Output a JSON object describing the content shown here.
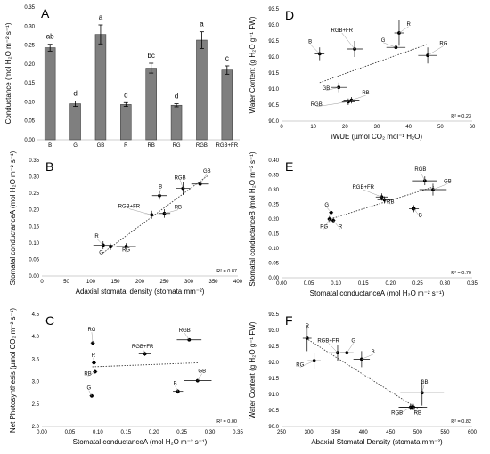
{
  "chart_data": [
    {
      "panel": "A",
      "type": "bar",
      "ylabel": "Conductance (mol H₂O m⁻² s⁻¹)",
      "ylim": [
        0,
        0.35
      ],
      "yticks": [
        0,
        0.05,
        0.1,
        0.15,
        0.2,
        0.25,
        0.3,
        0.35
      ],
      "categories": [
        "B",
        "G",
        "GB",
        "R",
        "RB",
        "RG",
        "RGB",
        "RGB+FR"
      ],
      "values": [
        0.243,
        0.095,
        0.278,
        0.093,
        0.189,
        0.091,
        0.263,
        0.184
      ],
      "errors": [
        0.009,
        0.007,
        0.025,
        0.005,
        0.013,
        0.004,
        0.022,
        0.011
      ],
      "letters": [
        "ab",
        "d",
        "a",
        "d",
        "bc",
        "d",
        "a",
        "c"
      ]
    },
    {
      "panel": "B",
      "type": "scatter",
      "xlabel": "Adaxial stomatal density (stomata mm⁻²)",
      "ylabel": "Stomatal conductanceA (mol H₂O m⁻² s⁻¹)",
      "xlim": [
        0,
        400
      ],
      "ylim": [
        0,
        0.35
      ],
      "xticks": [
        0,
        50,
        100,
        150,
        200,
        250,
        300,
        350,
        400
      ],
      "yticks": [
        0,
        0.05,
        0.1,
        0.15,
        0.2,
        0.25,
        0.3,
        0.35
      ],
      "r2": "R² = 0.87",
      "trend": [
        [
          125,
          0.07
        ],
        [
          340,
          0.305
        ]
      ],
      "points": [
        {
          "label": "R",
          "x": 125,
          "y": 0.093,
          "xerr": 20,
          "yerr": 0.012,
          "lx": 112,
          "ly": 0.113
        },
        {
          "label": "G",
          "x": 140,
          "y": 0.088,
          "xerr": 14,
          "yerr": 0.01,
          "lx": 121,
          "ly": 0.063
        },
        {
          "label": "RG",
          "x": 172,
          "y": 0.089,
          "xerr": 20,
          "yerr": 0.01,
          "lx": 172,
          "ly": 0.072
        },
        {
          "label": "B",
          "x": 240,
          "y": 0.243,
          "xerr": 15,
          "yerr": 0.012,
          "lx": 242,
          "ly": 0.262
        },
        {
          "label": "RGB",
          "x": 288,
          "y": 0.265,
          "xerr": 15,
          "yerr": 0.02,
          "lx": 282,
          "ly": 0.29
        },
        {
          "label": "GB",
          "x": 323,
          "y": 0.278,
          "xerr": 18,
          "yerr": 0.02,
          "lx": 337,
          "ly": 0.31
        },
        {
          "label": "RGB+FR",
          "x": 224,
          "y": 0.185,
          "xerr": 14,
          "yerr": 0.012,
          "lx": 178,
          "ly": 0.203
        },
        {
          "label": "RB",
          "x": 250,
          "y": 0.189,
          "xerr": 12,
          "yerr": 0.013,
          "lx": 278,
          "ly": 0.2
        }
      ]
    },
    {
      "panel": "C",
      "type": "scatter",
      "xlabel": "Stomatal conductanceA (mol H₂O m⁻² s⁻¹)",
      "ylabel": "Net Photosynthesis (µmol CO₂ m⁻² s⁻¹)",
      "xlim": [
        0,
        0.35
      ],
      "ylim": [
        2,
        4.5
      ],
      "xticks": [
        0,
        0.05,
        0.1,
        0.15,
        0.2,
        0.25,
        0.3,
        0.35
      ],
      "yticks": [
        2,
        2.5,
        3,
        3.5,
        4,
        4.5
      ],
      "r2": "R² = 0.00",
      "trend": [
        [
          0.09,
          3.33
        ],
        [
          0.28,
          3.42
        ]
      ],
      "points": [
        {
          "label": "RG",
          "x": 0.091,
          "y": 3.86,
          "xerr": 0.004,
          "yerr": 0.04,
          "lx": 0.089,
          "ly": 4.1
        },
        {
          "label": "R",
          "x": 0.093,
          "y": 3.42,
          "xerr": 0.004,
          "yerr": 0.04,
          "lx": 0.092,
          "ly": 3.53
        },
        {
          "label": "RB",
          "x": 0.095,
          "y": 3.22,
          "xerr": 0.004,
          "yerr": 0.04,
          "lx": 0.082,
          "ly": 3.12
        },
        {
          "label": "G",
          "x": 0.089,
          "y": 2.68,
          "xerr": 0.004,
          "yerr": 0.04,
          "lx": 0.084,
          "ly": 2.8
        },
        {
          "label": "RGB+FR",
          "x": 0.184,
          "y": 3.62,
          "xerr": 0.011,
          "yerr": 0.05,
          "lx": 0.18,
          "ly": 3.73
        },
        {
          "label": "RGB",
          "x": 0.263,
          "y": 3.93,
          "xerr": 0.022,
          "yerr": 0.03,
          "lx": 0.255,
          "ly": 4.08
        },
        {
          "label": "B",
          "x": 0.243,
          "y": 2.78,
          "xerr": 0.009,
          "yerr": 0.05,
          "lx": 0.238,
          "ly": 2.9
        },
        {
          "label": "GB",
          "x": 0.278,
          "y": 3.02,
          "xerr": 0.025,
          "yerr": 0.04,
          "lx": 0.286,
          "ly": 3.18
        }
      ]
    },
    {
      "panel": "D",
      "type": "scatter",
      "xlabel": "iWUE (µmol CO₂ mol⁻¹ H₂O)",
      "ylabel": "Water Content (g H₂O g⁻¹ FW)",
      "xlim": [
        0,
        60
      ],
      "ylim": [
        90,
        93.5
      ],
      "xticks": [
        0,
        10,
        20,
        30,
        40,
        50,
        60
      ],
      "yticks": [
        90,
        90.5,
        91,
        91.5,
        92,
        92.5,
        93,
        93.5
      ],
      "r2": "R² = 0.23",
      "trend": [
        [
          12,
          91.2
        ],
        [
          46,
          92.4
        ]
      ],
      "points": [
        {
          "label": "B",
          "x": 12,
          "y": 92.1,
          "xerr": 1.5,
          "yerr": 0.2,
          "lx": 9,
          "ly": 92.4
        },
        {
          "label": "RGB+FR",
          "x": 23,
          "y": 92.25,
          "xerr": 2.5,
          "yerr": 0.25,
          "lx": 19,
          "ly": 92.75
        },
        {
          "label": "R",
          "x": 37,
          "y": 92.75,
          "xerr": 1.5,
          "yerr": 0.4,
          "lx": 40,
          "ly": 92.95
        },
        {
          "label": "G",
          "x": 36,
          "y": 92.3,
          "xerr": 3,
          "yerr": 0.15,
          "lx": 32,
          "ly": 92.45
        },
        {
          "label": "RG",
          "x": 46,
          "y": 92.05,
          "xerr": 3,
          "yerr": 0.25,
          "lx": 51,
          "ly": 92.35
        },
        {
          "label": "GB",
          "x": 18,
          "y": 91.05,
          "xerr": 2.5,
          "yerr": 0.15,
          "lx": 14,
          "ly": 90.95
        },
        {
          "label": "RB",
          "x": 22,
          "y": 90.65,
          "xerr": 2.5,
          "yerr": 0.1,
          "lx": 26.5,
          "ly": 90.8
        },
        {
          "label": "RGB",
          "x": 21,
          "y": 90.6,
          "xerr": 2,
          "yerr": 0.1,
          "lx": 11,
          "ly": 90.45
        }
      ]
    },
    {
      "panel": "E",
      "type": "scatter",
      "xlabel": "Stomatal conductanceA (mol H₂O m⁻² s⁻¹)",
      "ylabel": "Stomatal conductanceB (mol H₂O m⁻² s⁻¹)",
      "xlim": [
        0,
        0.35
      ],
      "ylim": [
        0,
        0.4
      ],
      "xticks": [
        0,
        0.05,
        0.1,
        0.15,
        0.2,
        0.25,
        0.3,
        0.35
      ],
      "yticks": [
        0,
        0.05,
        0.1,
        0.15,
        0.2,
        0.25,
        0.3,
        0.35,
        0.4
      ],
      "r2": "R² = 0.70",
      "trend": [
        [
          0.09,
          0.2
        ],
        [
          0.28,
          0.31
        ]
      ],
      "points": [
        {
          "label": "G",
          "x": 0.091,
          "y": 0.222,
          "xerr": 0.004,
          "yerr": 0.01,
          "lx": 0.083,
          "ly": 0.24
        },
        {
          "label": "RG",
          "x": 0.088,
          "y": 0.2,
          "xerr": 0.004,
          "yerr": 0.01,
          "lx": 0.078,
          "ly": 0.165
        },
        {
          "label": "R",
          "x": 0.095,
          "y": 0.195,
          "xerr": 0.004,
          "yerr": 0.01,
          "lx": 0.108,
          "ly": 0.165
        },
        {
          "label": "RGB+FR",
          "x": 0.184,
          "y": 0.275,
          "xerr": 0.011,
          "yerr": 0.012,
          "lx": 0.15,
          "ly": 0.3
        },
        {
          "label": "RB",
          "x": 0.189,
          "y": 0.265,
          "xerr": 0.013,
          "yerr": 0.012,
          "lx": 0.2,
          "ly": 0.25
        },
        {
          "label": "RGB",
          "x": 0.263,
          "y": 0.33,
          "xerr": 0.022,
          "yerr": 0.015,
          "lx": 0.255,
          "ly": 0.36
        },
        {
          "label": "GB",
          "x": 0.278,
          "y": 0.3,
          "xerr": 0.025,
          "yerr": 0.02,
          "lx": 0.305,
          "ly": 0.32
        },
        {
          "label": "B",
          "x": 0.243,
          "y": 0.235,
          "xerr": 0.009,
          "yerr": 0.012,
          "lx": 0.255,
          "ly": 0.205
        }
      ]
    },
    {
      "panel": "F",
      "type": "scatter",
      "xlabel": "Abaxial Stomatal Density (stomata mm⁻²)",
      "ylabel": "Water Content (g H₂O g⁻¹ FW)",
      "xlim": [
        250,
        600
      ],
      "ylim": [
        90,
        93.5
      ],
      "xticks": [
        250,
        300,
        350,
        400,
        450,
        500,
        550,
        600
      ],
      "yticks": [
        90,
        90.5,
        91,
        91.5,
        92,
        92.5,
        93,
        93.5
      ],
      "r2": "R² = 0.82",
      "trend": [
        [
          295,
          92.75
        ],
        [
          500,
          90.55
        ]
      ],
      "points": [
        {
          "label": "R",
          "x": 297,
          "y": 92.75,
          "xerr": 8,
          "yerr": 0.4,
          "lx": 297,
          "ly": 93.05
        },
        {
          "label": "RG",
          "x": 310,
          "y": 92.05,
          "xerr": 12,
          "yerr": 0.25,
          "lx": 284,
          "ly": 91.85
        },
        {
          "label": "RGB+FR",
          "x": 353,
          "y": 92.3,
          "xerr": 15,
          "yerr": 0.25,
          "lx": 336,
          "ly": 92.6
        },
        {
          "label": "G",
          "x": 370,
          "y": 92.3,
          "xerr": 12,
          "yerr": 0.15,
          "lx": 382,
          "ly": 92.6
        },
        {
          "label": "B",
          "x": 397,
          "y": 92.1,
          "xerr": 15,
          "yerr": 0.25,
          "lx": 418,
          "ly": 92.25
        },
        {
          "label": "GB",
          "x": 508,
          "y": 91.05,
          "xerr": 40,
          "yerr": 0.4,
          "lx": 512,
          "ly": 91.3
        },
        {
          "label": "RGB",
          "x": 487,
          "y": 90.6,
          "xerr": 22,
          "yerr": 0.1,
          "lx": 462,
          "ly": 90.35
        },
        {
          "label": "RB",
          "x": 492,
          "y": 90.6,
          "xerr": 25,
          "yerr": 0.1,
          "lx": 500,
          "ly": 90.35
        }
      ]
    }
  ]
}
